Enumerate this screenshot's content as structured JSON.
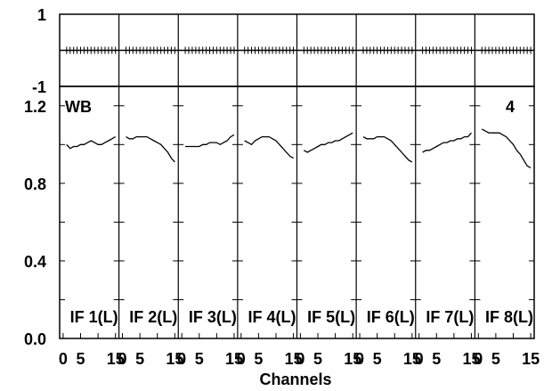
{
  "chart_data": {
    "type": "line",
    "xlabel": "Channels",
    "corner_labels": {
      "left": "WB",
      "right": "4"
    },
    "top_panel": {
      "ylim": [
        -1,
        1
      ],
      "yticks": [
        "1",
        "-1"
      ],
      "values_per_channel": 0
    },
    "bottom_panel": {
      "ylim": [
        0,
        1.3
      ],
      "yticks": [
        {
          "value": 0.0,
          "label": "0.0"
        },
        {
          "value": 0.4,
          "label": "0.4"
        },
        {
          "value": 0.8,
          "label": "0.8"
        },
        {
          "value": 1.2,
          "label": "1.2"
        }
      ]
    },
    "xticks": [
      {
        "value": 0,
        "label": "0"
      },
      {
        "value": 5,
        "label": "5"
      },
      {
        "value": 15,
        "label": "15"
      }
    ],
    "xlim": [
      -1,
      16
    ],
    "channels": [
      1,
      2,
      3,
      4,
      5,
      6,
      7,
      8,
      9,
      10,
      11,
      12,
      13,
      14,
      15
    ],
    "series": [
      {
        "name": "IF 1(L)",
        "values": [
          1.0,
          0.98,
          0.99,
          0.99,
          1.0,
          1.0,
          1.01,
          1.02,
          1.01,
          1.0,
          1.0,
          1.01,
          1.02,
          1.03,
          1.04
        ]
      },
      {
        "name": "IF 2(L)",
        "values": [
          1.04,
          1.03,
          1.03,
          1.04,
          1.04,
          1.04,
          1.04,
          1.03,
          1.02,
          1.01,
          1.0,
          0.98,
          0.96,
          0.93,
          0.91
        ]
      },
      {
        "name": "IF 3(L)",
        "values": [
          0.99,
          0.99,
          0.99,
          0.99,
          0.99,
          1.0,
          1.0,
          1.01,
          1.01,
          1.01,
          1.0,
          1.01,
          1.02,
          1.04,
          1.05
        ]
      },
      {
        "name": "IF 4(L)",
        "values": [
          1.02,
          1.01,
          1.0,
          1.02,
          1.03,
          1.04,
          1.04,
          1.04,
          1.03,
          1.02,
          1.0,
          0.98,
          0.96,
          0.94,
          0.93
        ]
      },
      {
        "name": "IF 5(L)",
        "values": [
          0.97,
          0.96,
          0.97,
          0.98,
          0.99,
          1.0,
          1.0,
          1.01,
          1.01,
          1.02,
          1.02,
          1.03,
          1.04,
          1.05,
          1.06
        ]
      },
      {
        "name": "IF 6(L)",
        "values": [
          1.04,
          1.03,
          1.03,
          1.03,
          1.04,
          1.04,
          1.04,
          1.03,
          1.02,
          1.0,
          0.98,
          0.96,
          0.94,
          0.92,
          0.91
        ]
      },
      {
        "name": "IF 7(L)",
        "values": [
          0.96,
          0.97,
          0.97,
          0.98,
          0.99,
          1.0,
          1.01,
          1.01,
          1.02,
          1.02,
          1.03,
          1.03,
          1.04,
          1.04,
          1.06
        ]
      },
      {
        "name": "IF 8(L)",
        "values": [
          1.08,
          1.07,
          1.06,
          1.06,
          1.06,
          1.06,
          1.05,
          1.04,
          1.02,
          1.0,
          0.97,
          0.95,
          0.92,
          0.89,
          0.88
        ]
      }
    ]
  }
}
